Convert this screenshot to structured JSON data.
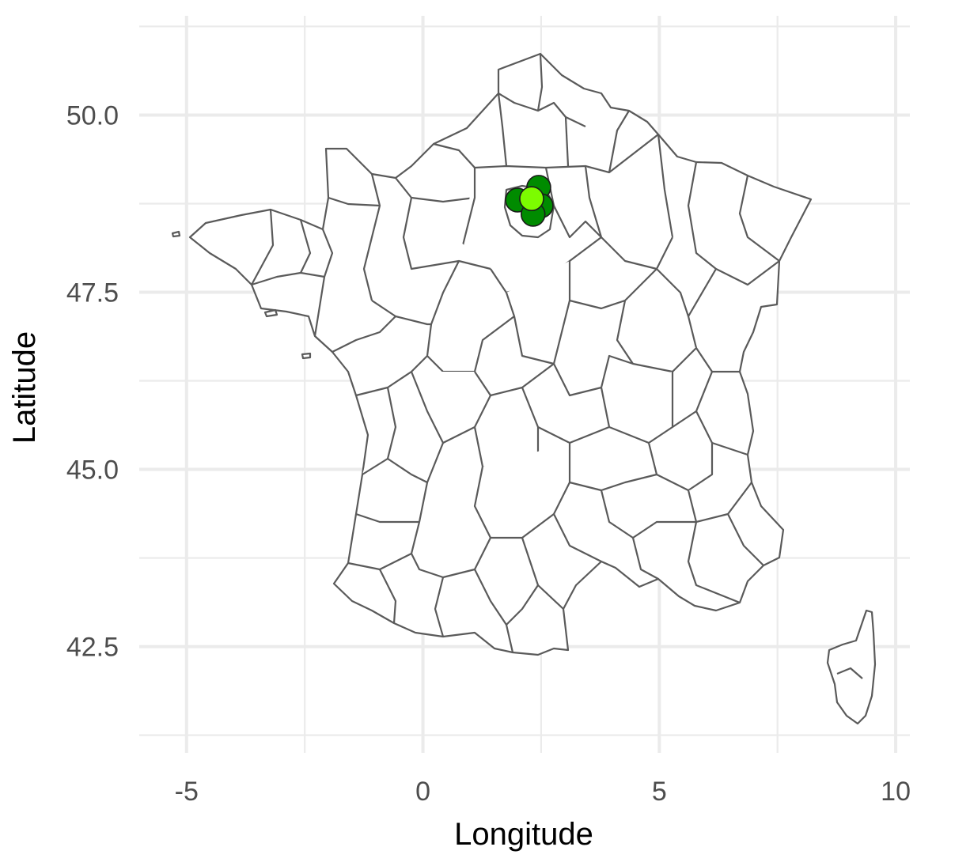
{
  "chart_data": {
    "type": "scatter",
    "title": "",
    "xlabel": "Longitude",
    "ylabel": "Latitude",
    "xlim": [
      -6.0,
      10.3
    ],
    "ylim": [
      41.0,
      51.4
    ],
    "x_ticks": [
      -5,
      0,
      5,
      10
    ],
    "x_tick_labels": [
      "-5",
      "0",
      "5",
      "10"
    ],
    "y_ticks": [
      42.5,
      45.0,
      47.5,
      50.0
    ],
    "y_tick_labels": [
      "42.5",
      "45.0",
      "47.5",
      "50.0"
    ],
    "grid": true,
    "legend": "none",
    "basemap": "France departement boundaries",
    "points": [
      {
        "lon": 2.45,
        "lat": 48.98,
        "color": "#008b00"
      },
      {
        "lon": 2.0,
        "lat": 48.8,
        "color": "#008b00"
      },
      {
        "lon": 2.5,
        "lat": 48.72,
        "color": "#008b00"
      },
      {
        "lon": 2.33,
        "lat": 48.6,
        "color": "#008b00"
      },
      {
        "lon": 2.3,
        "lat": 48.82,
        "color": "#7cfc00"
      }
    ]
  },
  "colors": {
    "map_fill": "#ffffff",
    "map_stroke": "#5a5a5a",
    "grid": "#ebebeb"
  }
}
